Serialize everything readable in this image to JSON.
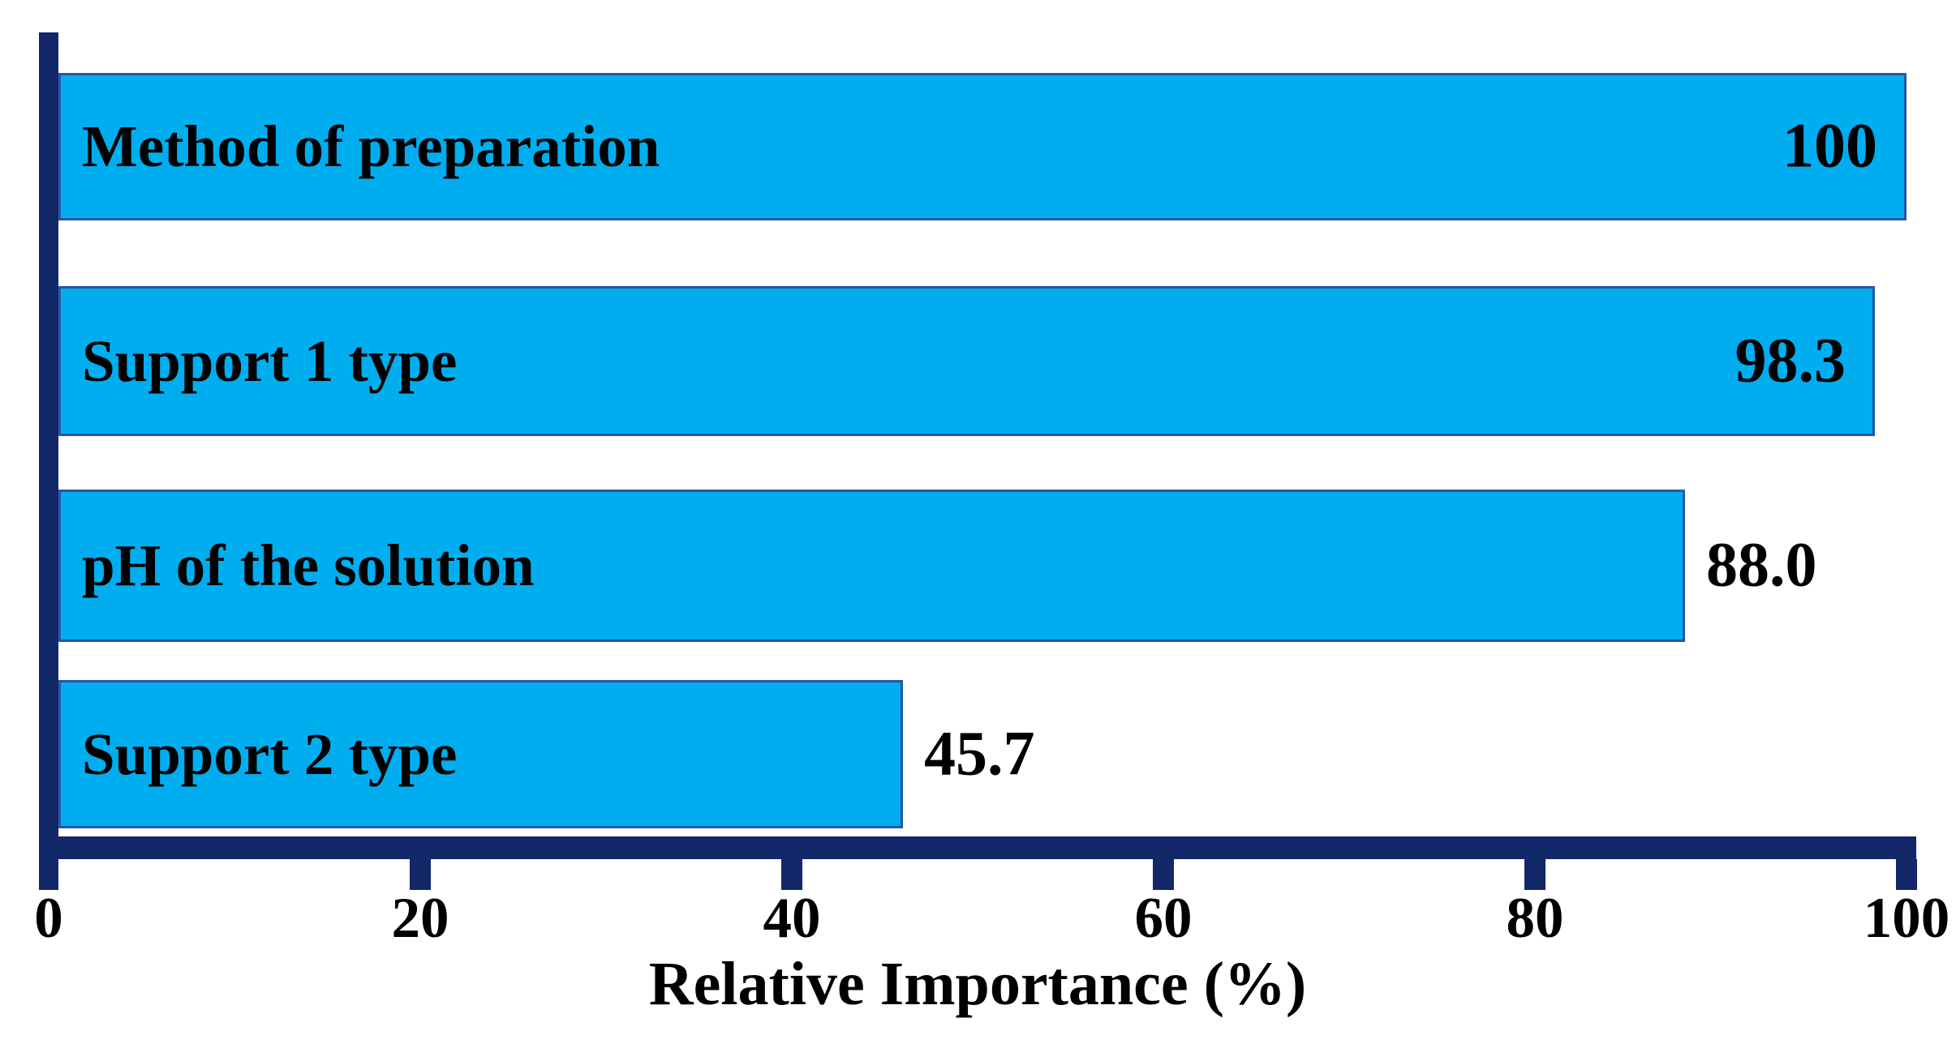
{
  "chart_data": {
    "type": "bar",
    "orientation": "horizontal",
    "title": "",
    "xlabel": "Relative Importance (%)",
    "ylabel": "",
    "categories": [
      "Method of preparation",
      "Support 1 type",
      "pH of the solution",
      "Support 2 type"
    ],
    "values": [
      100,
      98.3,
      88.0,
      45.7
    ],
    "value_labels": [
      "100",
      "98.3",
      "88.0",
      "45.7"
    ],
    "xlim": [
      0,
      100
    ],
    "x_ticks": [
      0,
      20,
      40,
      60,
      80,
      100
    ],
    "x_tick_labels": [
      "0",
      "20",
      "40",
      "60",
      "80",
      "100"
    ],
    "grid": false,
    "legend": false,
    "colors": {
      "bar_fill": "#00aeef",
      "bar_border": "#2a57a5",
      "axis": "#132868",
      "text": "#000000"
    }
  }
}
